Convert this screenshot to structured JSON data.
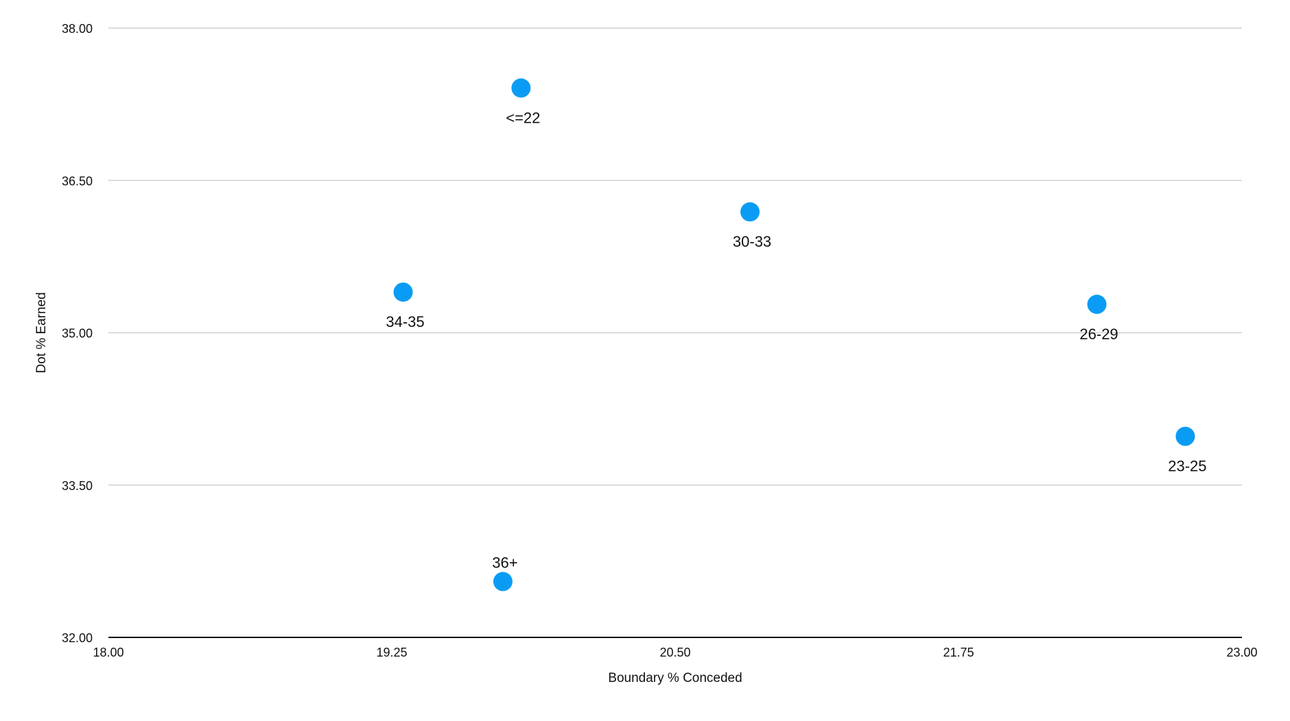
{
  "chart_data": {
    "type": "scatter",
    "title": "",
    "xlabel": "Boundary % Conceded",
    "ylabel": "Dot % Earned",
    "xlim": [
      18.0,
      23.0
    ],
    "ylim": [
      32.0,
      38.0
    ],
    "xticks": [
      18.0,
      19.25,
      20.5,
      21.75,
      23.0
    ],
    "xtick_labels": [
      "18.00",
      "19.25",
      "20.50",
      "21.75",
      "23.00"
    ],
    "yticks": [
      32.0,
      33.5,
      35.0,
      36.5,
      38.0
    ],
    "ytick_labels": [
      "32.00",
      "33.50",
      "35.00",
      "36.50",
      "38.00"
    ],
    "grid": true,
    "legend": "none",
    "series": [
      {
        "color": "#0a9cf5",
        "points": [
          {
            "label": "<=22",
            "x": 19.82,
            "y": 37.41,
            "label_position": "below"
          },
          {
            "label": "30-33",
            "x": 20.83,
            "y": 36.19,
            "label_position": "below"
          },
          {
            "label": "34-35",
            "x": 19.3,
            "y": 35.4,
            "label_position": "below"
          },
          {
            "label": "26-29",
            "x": 22.36,
            "y": 35.28,
            "label_position": "below"
          },
          {
            "label": "23-25",
            "x": 22.75,
            "y": 33.98,
            "label_position": "below"
          },
          {
            "label": "36+",
            "x": 19.74,
            "y": 32.55,
            "label_position": "above"
          }
        ]
      }
    ]
  },
  "colors": {
    "point": "#0a9cf5",
    "gridline": "#c8c8c8",
    "axis": "#111111",
    "text": "#111111"
  }
}
